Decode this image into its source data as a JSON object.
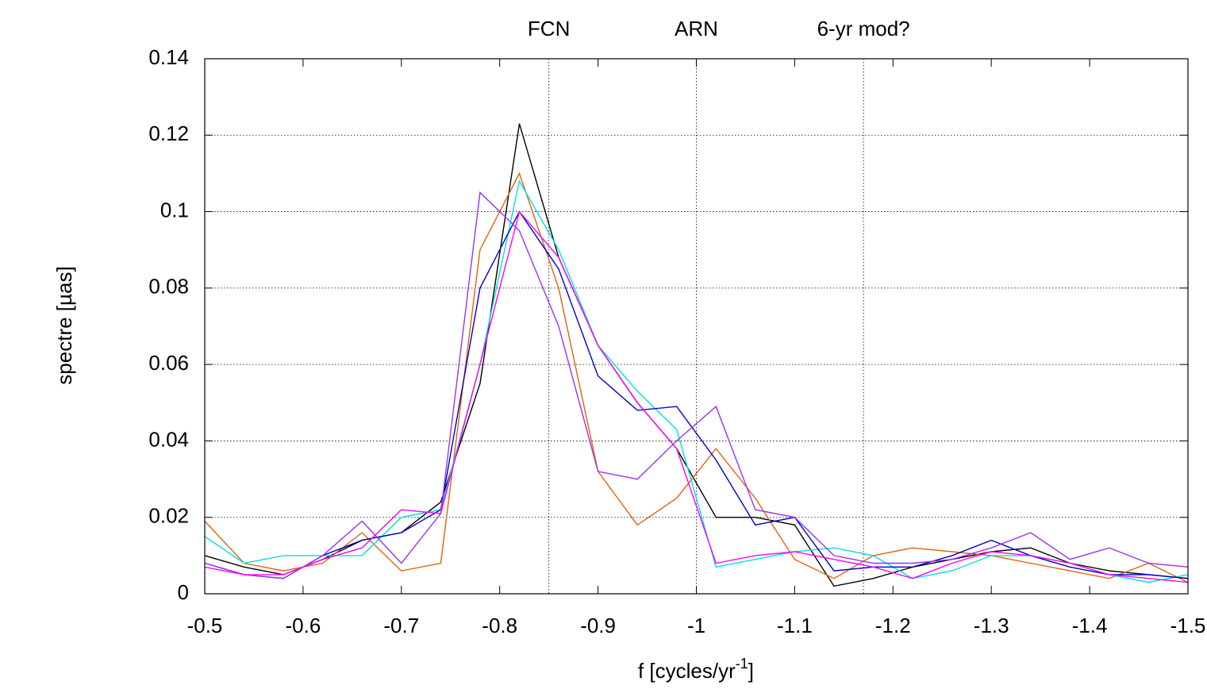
{
  "chart_data": {
    "type": "line",
    "xlabel_parts": [
      "f [cycles/yr",
      "-1",
      "]"
    ],
    "ylabel": "spectre [µas]",
    "x": [
      -0.5,
      -0.54,
      -0.58,
      -0.62,
      -0.66,
      -0.7,
      -0.74,
      -0.78,
      -0.82,
      -0.86,
      -0.9,
      -0.94,
      -0.98,
      -1.02,
      -1.06,
      -1.1,
      -1.14,
      -1.18,
      -1.22,
      -1.26,
      -1.3,
      -1.34,
      -1.38,
      -1.42,
      -1.46,
      -1.5
    ],
    "series": [
      {
        "color": "#000000",
        "values": [
          0.01,
          0.007,
          0.005,
          0.009,
          0.014,
          0.016,
          0.024,
          0.055,
          0.123,
          0.088,
          0.065,
          0.05,
          0.038,
          0.02,
          0.02,
          0.018,
          0.002,
          0.004,
          0.007,
          0.009,
          0.011,
          0.012,
          0.008,
          0.006,
          0.005,
          0.004
        ]
      },
      {
        "color": "#e5620f",
        "values": [
          0.019,
          0.008,
          0.006,
          0.008,
          0.016,
          0.006,
          0.008,
          0.09,
          0.11,
          0.08,
          0.032,
          0.018,
          0.025,
          0.038,
          0.025,
          0.009,
          0.004,
          0.01,
          0.012,
          0.011,
          0.01,
          0.008,
          0.006,
          0.004,
          0.008,
          0.003
        ]
      },
      {
        "color": "#00e0e0",
        "values": [
          0.015,
          0.008,
          0.01,
          0.01,
          0.01,
          0.02,
          0.022,
          0.06,
          0.108,
          0.09,
          0.065,
          0.053,
          0.043,
          0.007,
          0.009,
          0.011,
          0.012,
          0.01,
          0.004,
          0.006,
          0.01,
          0.01,
          0.008,
          0.005,
          0.003,
          0.005
        ]
      },
      {
        "color": "#0000cc",
        "values": [
          0.008,
          0.005,
          0.004,
          0.01,
          0.014,
          0.016,
          0.022,
          0.08,
          0.1,
          0.085,
          0.057,
          0.048,
          0.049,
          0.035,
          0.018,
          0.02,
          0.006,
          0.007,
          0.007,
          0.01,
          0.014,
          0.01,
          0.007,
          0.005,
          0.005,
          0.004
        ]
      },
      {
        "color": "#9933ee",
        "values": [
          0.008,
          0.005,
          0.004,
          0.01,
          0.019,
          0.008,
          0.021,
          0.105,
          0.095,
          0.07,
          0.032,
          0.03,
          0.04,
          0.049,
          0.022,
          0.02,
          0.01,
          0.008,
          0.008,
          0.009,
          0.012,
          0.016,
          0.009,
          0.012,
          0.008,
          0.007
        ]
      },
      {
        "color": "#ff00ff",
        "values": [
          0.007,
          0.005,
          0.005,
          0.009,
          0.012,
          0.022,
          0.021,
          0.06,
          0.1,
          0.088,
          0.065,
          0.05,
          0.038,
          0.008,
          0.01,
          0.011,
          0.009,
          0.007,
          0.004,
          0.008,
          0.011,
          0.01,
          0.008,
          0.005,
          0.004,
          0.003
        ]
      }
    ],
    "xlim": [
      -0.5,
      -1.5
    ],
    "xticks": [
      -0.5,
      -0.6,
      -0.7,
      -0.8,
      -0.9,
      -1,
      -1.1,
      -1.2,
      -1.3,
      -1.4,
      -1.5
    ],
    "ylim": [
      0,
      0.14
    ],
    "yticks": [
      0,
      0.02,
      0.04,
      0.06,
      0.08,
      0.1,
      0.12,
      0.14
    ],
    "grid": "y",
    "annotations": [
      {
        "text": "FCN",
        "x": -0.85
      },
      {
        "text": "ARN",
        "x": -1
      },
      {
        "text": "6-yr mod?",
        "x": -1.17
      }
    ]
  }
}
